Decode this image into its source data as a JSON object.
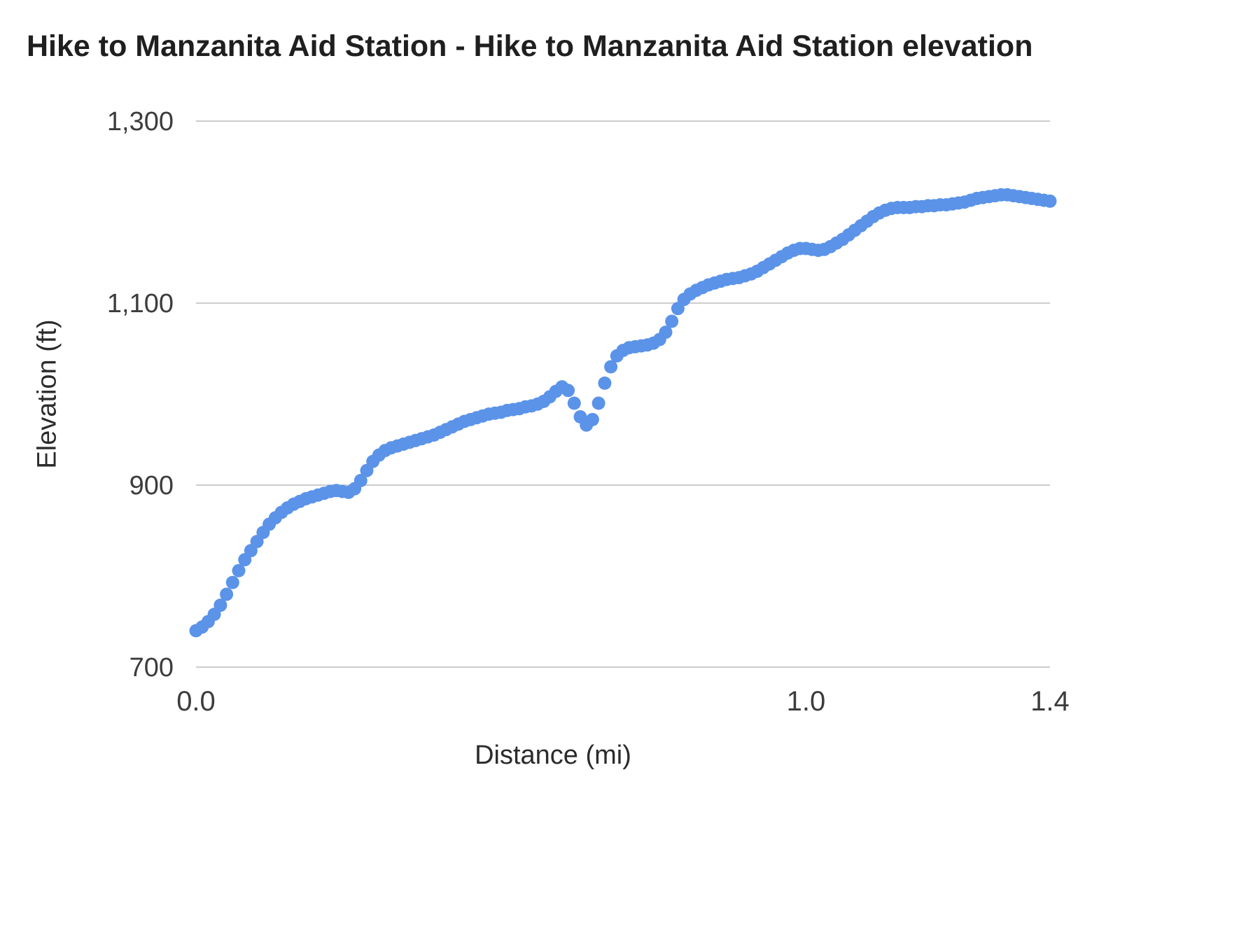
{
  "chart_data": {
    "type": "scatter",
    "title": "Hike to Manzanita Aid Station - Hike to Manzanita Aid Station elevation",
    "xlabel": "Distance (mi)",
    "ylabel": "Elevation (ft)",
    "xlim": [
      0,
      1.4
    ],
    "ylim": [
      700,
      1300
    ],
    "grid": true,
    "legend_position": "none",
    "point_color": "#5b93e8",
    "gridline_color": "#cccccc",
    "x_ticks": [
      {
        "value": 0,
        "label": "0.0"
      },
      {
        "value": 1,
        "label": "1.0"
      },
      {
        "value": 1.4,
        "label": "1.4"
      }
    ],
    "y_ticks": [
      {
        "value": 700,
        "label": "700"
      },
      {
        "value": 900,
        "label": "900"
      },
      {
        "value": 1100,
        "label": "1,100"
      },
      {
        "value": 1300,
        "label": "1,300"
      }
    ],
    "series": [
      {
        "name": "Hike to Manzanita Aid Station elevation",
        "x": [
          0.0,
          0.01,
          0.02,
          0.03,
          0.04,
          0.05,
          0.06,
          0.07,
          0.08,
          0.09,
          0.1,
          0.11,
          0.12,
          0.13,
          0.14,
          0.15,
          0.16,
          0.17,
          0.18,
          0.19,
          0.2,
          0.21,
          0.22,
          0.23,
          0.24,
          0.25,
          0.26,
          0.27,
          0.28,
          0.29,
          0.3,
          0.31,
          0.32,
          0.33,
          0.34,
          0.35,
          0.36,
          0.37,
          0.38,
          0.39,
          0.4,
          0.41,
          0.42,
          0.43,
          0.44,
          0.45,
          0.46,
          0.47,
          0.48,
          0.49,
          0.5,
          0.51,
          0.52,
          0.53,
          0.54,
          0.55,
          0.56,
          0.57,
          0.58,
          0.59,
          0.6,
          0.61,
          0.62,
          0.63,
          0.64,
          0.65,
          0.66,
          0.67,
          0.68,
          0.69,
          0.7,
          0.71,
          0.72,
          0.73,
          0.74,
          0.75,
          0.76,
          0.77,
          0.78,
          0.79,
          0.8,
          0.81,
          0.82,
          0.83,
          0.84,
          0.85,
          0.86,
          0.87,
          0.88,
          0.89,
          0.9,
          0.91,
          0.92,
          0.93,
          0.94,
          0.95,
          0.96,
          0.97,
          0.98,
          0.99,
          1.0,
          1.01,
          1.02,
          1.03,
          1.04,
          1.05,
          1.06,
          1.07,
          1.08,
          1.09,
          1.1,
          1.11,
          1.12,
          1.13,
          1.14,
          1.15,
          1.16,
          1.17,
          1.18,
          1.19,
          1.2,
          1.21,
          1.22,
          1.23,
          1.24,
          1.25,
          1.26,
          1.27,
          1.28,
          1.29,
          1.3,
          1.31,
          1.32,
          1.33,
          1.34,
          1.35,
          1.36,
          1.37,
          1.38,
          1.39,
          1.4
        ],
        "y": [
          740,
          744,
          750,
          758,
          768,
          780,
          793,
          806,
          818,
          828,
          838,
          848,
          857,
          864,
          870,
          875,
          879,
          882,
          885,
          887,
          889,
          891,
          893,
          894,
          893,
          892,
          896,
          905,
          916,
          926,
          933,
          938,
          941,
          943,
          945,
          947,
          949,
          951,
          953,
          955,
          958,
          961,
          964,
          967,
          970,
          972,
          974,
          976,
          978,
          979,
          980,
          982,
          983,
          984,
          986,
          987,
          989,
          992,
          997,
          1003,
          1008,
          1004,
          990,
          975,
          966,
          972,
          990,
          1012,
          1030,
          1042,
          1048,
          1051,
          1052,
          1053,
          1054,
          1056,
          1060,
          1068,
          1080,
          1094,
          1104,
          1110,
          1114,
          1117,
          1120,
          1122,
          1124,
          1126,
          1127,
          1128,
          1130,
          1132,
          1135,
          1139,
          1143,
          1147,
          1151,
          1155,
          1158,
          1160,
          1160,
          1159,
          1158,
          1159,
          1162,
          1166,
          1170,
          1175,
          1180,
          1185,
          1190,
          1195,
          1199,
          1202,
          1204,
          1205,
          1205,
          1205,
          1206,
          1206,
          1207,
          1207,
          1208,
          1208,
          1209,
          1210,
          1211,
          1213,
          1215,
          1216,
          1217,
          1218,
          1219,
          1219,
          1218,
          1217,
          1216,
          1215,
          1214,
          1213,
          1212
        ]
      }
    ]
  }
}
